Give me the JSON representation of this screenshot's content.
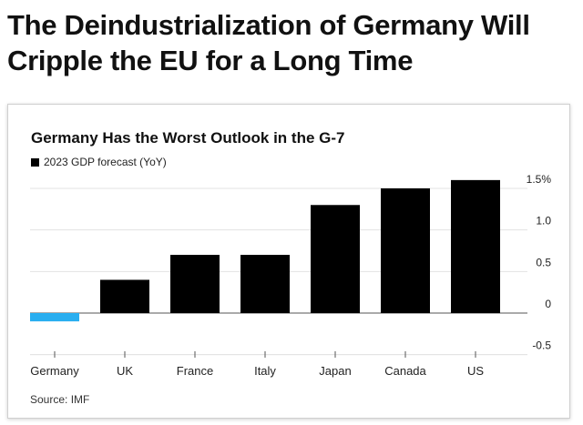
{
  "headline": "The Deindustrialization of Germany Will Cripple the EU for a Long Time",
  "source": "Source: IMF",
  "chart_data": {
    "type": "bar",
    "title": "Germany Has the Worst Outlook in the G-7",
    "legend": [
      "2023 GDP forecast (YoY)"
    ],
    "categories": [
      "Germany",
      "UK",
      "France",
      "Italy",
      "Japan",
      "Canada",
      "US"
    ],
    "series": [
      {
        "name": "2023 GDP forecast (YoY)",
        "values": [
          -0.1,
          0.4,
          0.7,
          0.7,
          1.3,
          1.5,
          1.6
        ]
      }
    ],
    "y_ticks": [
      {
        "value": 1.5,
        "label": "1.5%"
      },
      {
        "value": 1.0,
        "label": "1.0"
      },
      {
        "value": 0.5,
        "label": "0.5"
      },
      {
        "value": 0,
        "label": "0"
      },
      {
        "value": -0.5,
        "label": "-0.5"
      }
    ],
    "ylim": [
      -0.5,
      1.5
    ],
    "xlabel": "",
    "ylabel": "",
    "grid": true,
    "legend_position": "top-left",
    "colors": {
      "negative": "#29aef0",
      "positive": "#000000",
      "grid": "#e3e3e3",
      "zero_line": "#555555"
    }
  }
}
